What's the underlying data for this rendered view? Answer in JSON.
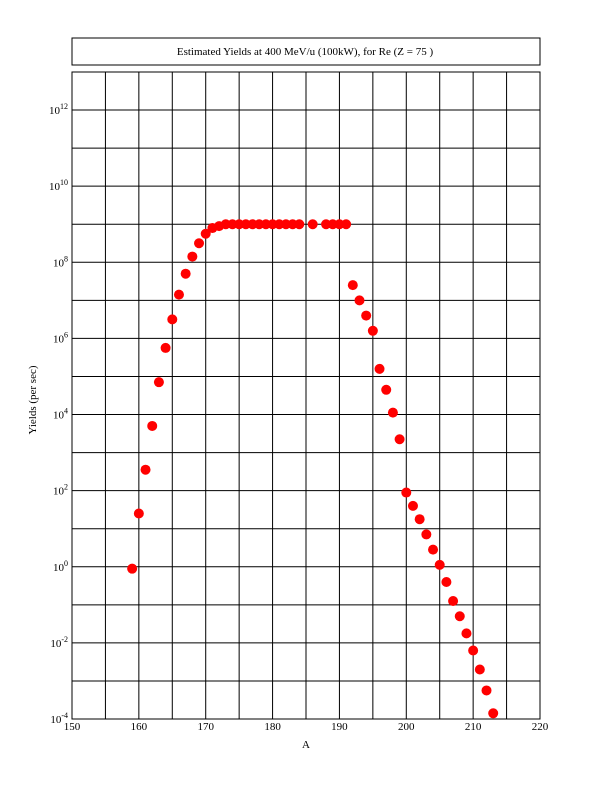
{
  "chart_data": {
    "type": "scatter",
    "title": "Estimated Yields at 400 MeV/u (100kW), for Re (Z = 75 )",
    "xlabel": "A",
    "ylabel": "Yields (per sec)",
    "xlim": [
      150,
      220
    ],
    "ylim_log10": [
      -4,
      13
    ],
    "y_scale": "log",
    "grid": true,
    "marker_color": "#ff0000",
    "x_ticks": [
      150,
      160,
      170,
      180,
      190,
      200,
      210,
      220
    ],
    "x_tick_labels": [
      "150",
      "160",
      "170",
      "180",
      "190",
      "200",
      "210",
      "220"
    ],
    "y_tick_exponents": [
      -4,
      -2,
      0,
      2,
      4,
      6,
      8,
      10,
      12
    ],
    "y_tick_base": "10",
    "series": [
      {
        "x": [
          159,
          160,
          161,
          162,
          163,
          164,
          165,
          166,
          167,
          168,
          169,
          170,
          171,
          172,
          173,
          174,
          175,
          176,
          177,
          178,
          179,
          180,
          181,
          182,
          183,
          184,
          186,
          188,
          189,
          190,
          191,
          192,
          193,
          194,
          195,
          196,
          197,
          198,
          199,
          200,
          201,
          202,
          203,
          204,
          205,
          206,
          207,
          208,
          209,
          210,
          211,
          212,
          213
        ],
        "log10_y": [
          -0.05,
          1.4,
          2.55,
          3.7,
          4.85,
          5.75,
          6.5,
          7.15,
          7.7,
          8.15,
          8.5,
          8.75,
          8.9,
          8.95,
          9.0,
          9.0,
          9.0,
          9.0,
          9.0,
          9.0,
          9.0,
          9.0,
          9.0,
          9.0,
          9.0,
          9.0,
          9.0,
          9.0,
          9.0,
          9.0,
          9.0,
          7.4,
          7.0,
          6.6,
          6.2,
          5.2,
          4.65,
          4.05,
          3.35,
          1.95,
          1.6,
          1.25,
          0.85,
          0.45,
          0.05,
          -0.4,
          -0.9,
          -1.3,
          -1.75,
          -2.2,
          -2.7,
          -3.25,
          -3.85
        ]
      }
    ]
  }
}
